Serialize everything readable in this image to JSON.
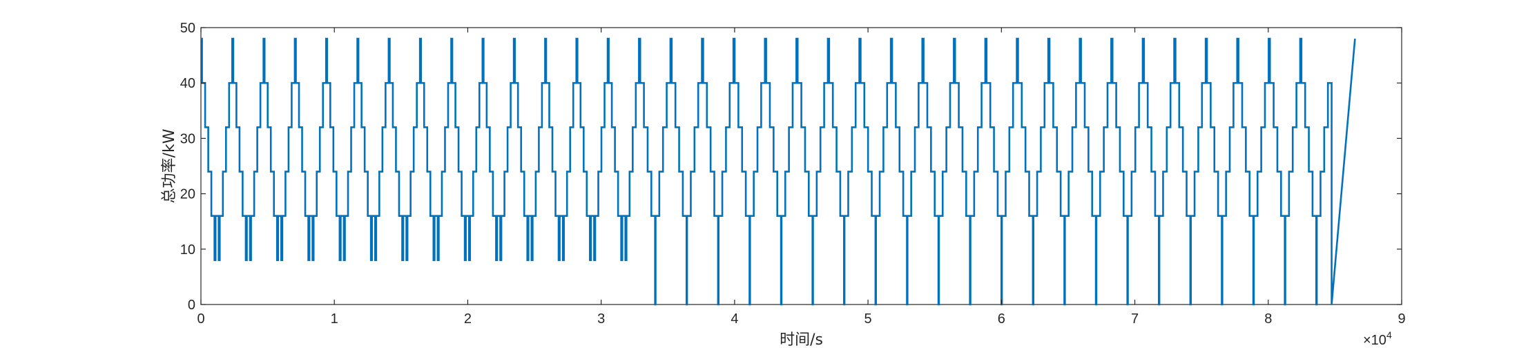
{
  "chart_data": {
    "type": "line",
    "xlabel": "时间/s",
    "ylabel": "总功率/kW",
    "x_exponent_label": "×10",
    "x_exponent_power": "4",
    "xlim": [
      0,
      90000
    ],
    "ylim": [
      0,
      50
    ],
    "x_ticks": [
      0,
      10000,
      20000,
      30000,
      40000,
      50000,
      60000,
      70000,
      80000,
      90000
    ],
    "x_tick_labels": [
      "0",
      "1",
      "2",
      "3",
      "4",
      "5",
      "6",
      "7",
      "8",
      "9"
    ],
    "y_ticks": [
      0,
      10,
      20,
      30,
      40,
      50
    ],
    "y_tick_labels": [
      "0",
      "10",
      "20",
      "30",
      "40",
      "50"
    ],
    "grid": false,
    "line_color": "#0072BD",
    "period_phase1_s": 2345,
    "period_phase2_s": 2360,
    "transition_x_s": 34000,
    "last_x_s": 86500,
    "cycle_profile_phase1": [
      48,
      40,
      32,
      24,
      16,
      8,
      16,
      8,
      16,
      24,
      32,
      40
    ],
    "cycle_profile_phase2": [
      48,
      40,
      32,
      24,
      16,
      0,
      16,
      24,
      32,
      40
    ],
    "series": [
      {
        "values_range": [
          0,
          48
        ]
      }
    ]
  }
}
